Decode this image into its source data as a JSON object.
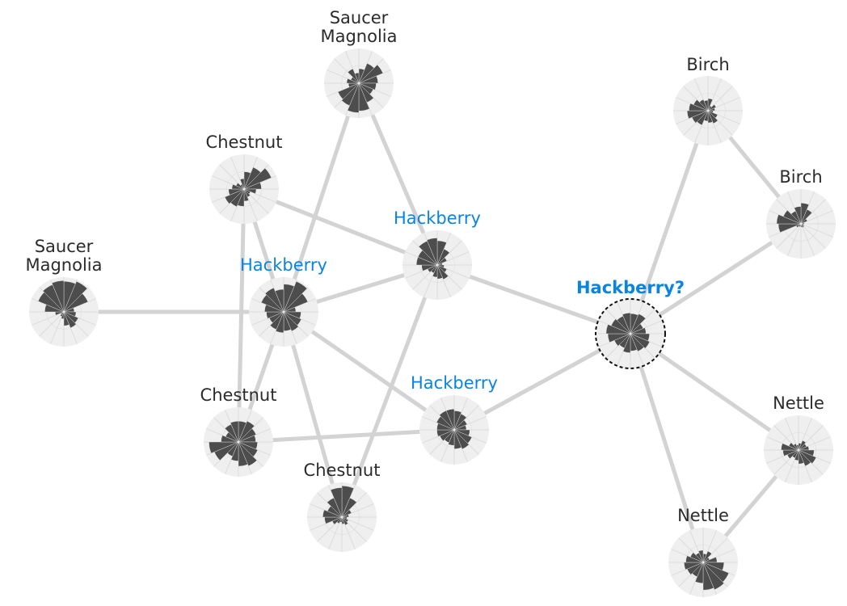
{
  "graph": {
    "colors": {
      "edge": "#d3d3d3",
      "node_background": "#efefef",
      "petal": "#4d4d4d",
      "label_default": "#2b2b2b",
      "label_highlight": "#0a84e0",
      "query_ring": "#111111"
    },
    "nodes": [
      {
        "id": "saucer-magnolia-top",
        "label": [
          "Saucer",
          "Magnolia"
        ],
        "style": "default",
        "petals": [
          0.42,
          0.62,
          0.75,
          0.55,
          0.5,
          0.45,
          0.6,
          0.8,
          0.85,
          0.7,
          0.65,
          0.3,
          0.35,
          0.25,
          0.45,
          0.3
        ]
      },
      {
        "id": "chestnut-upper",
        "label": [
          "Chestnut"
        ],
        "style": "default",
        "petals": [
          0.5,
          0.68,
          0.85,
          0.5,
          0.35,
          0.2,
          0.25,
          0.35,
          0.5,
          0.55,
          0.6,
          0.45,
          0.35,
          0.25,
          0.15,
          0.3
        ]
      },
      {
        "id": "saucer-magnolia-left",
        "label": [
          "Saucer",
          "Magnolia"
        ],
        "style": "default",
        "petals": [
          0.88,
          0.95,
          0.75,
          0.3,
          0.35,
          0.45,
          0.5,
          0.4,
          0.2,
          0.15,
          0.1,
          0.25,
          0.55,
          0.8,
          0.85,
          0.9
        ]
      },
      {
        "id": "hackberry-left",
        "label": [
          "Hackberry"
        ],
        "style": "known",
        "petals": [
          0.8,
          0.95,
          0.75,
          0.35,
          0.5,
          0.55,
          0.6,
          0.55,
          0.6,
          0.55,
          0.45,
          0.5,
          0.55,
          0.7,
          0.75,
          0.65
        ]
      },
      {
        "id": "hackberry-center",
        "label": [
          "Hackberry"
        ],
        "style": "known",
        "petals": [
          0.7,
          0.5,
          0.3,
          0.15,
          0.2,
          0.3,
          0.45,
          0.4,
          0.35,
          0.25,
          0.3,
          0.45,
          0.6,
          0.6,
          0.75,
          0.78
        ]
      },
      {
        "id": "hackberry-lower",
        "label": [
          "Hackberry"
        ],
        "style": "known",
        "petals": [
          0.55,
          0.5,
          0.4,
          0.35,
          0.45,
          0.55,
          0.6,
          0.55,
          0.45,
          0.4,
          0.45,
          0.5,
          0.5,
          0.55,
          0.6,
          0.6
        ]
      },
      {
        "id": "chestnut-lower-left",
        "label": [
          "Chestnut"
        ],
        "style": "default",
        "petals": [
          0.6,
          0.65,
          0.55,
          0.5,
          0.55,
          0.6,
          0.75,
          0.7,
          0.55,
          0.45,
          0.75,
          0.85,
          0.5,
          0.4,
          0.55,
          0.6
        ]
      },
      {
        "id": "chestnut-bottom",
        "label": [
          "Chestnut"
        ],
        "style": "default",
        "petals": [
          0.9,
          0.6,
          0.3,
          0.2,
          0.15,
          0.2,
          0.25,
          0.2,
          0.15,
          0.2,
          0.3,
          0.5,
          0.55,
          0.45,
          0.6,
          0.85
        ]
      },
      {
        "id": "query-node",
        "label": [
          "Hackberry?"
        ],
        "style": "query",
        "petals": [
          0.58,
          0.62,
          0.4,
          0.45,
          0.55,
          0.6,
          0.55,
          0.5,
          0.55,
          0.45,
          0.5,
          0.65,
          0.7,
          0.6,
          0.55,
          0.6
        ]
      },
      {
        "id": "birch-top",
        "label": [
          "Birch"
        ],
        "style": "default",
        "petals": [
          0.35,
          0.15,
          0.25,
          0.2,
          0.15,
          0.3,
          0.4,
          0.35,
          0.3,
          0.45,
          0.5,
          0.6,
          0.55,
          0.45,
          0.35,
          0.3
        ]
      },
      {
        "id": "birch-right",
        "label": [
          "Birch"
        ],
        "style": "default",
        "petals": [
          0.6,
          0.45,
          0.2,
          0.1,
          0.08,
          0.1,
          0.12,
          0.1,
          0.08,
          0.1,
          0.15,
          0.65,
          0.7,
          0.55,
          0.4,
          0.5
        ]
      },
      {
        "id": "nettle-right",
        "label": [
          "Nettle"
        ],
        "style": "default",
        "petals": [
          0.2,
          0.3,
          0.25,
          0.3,
          0.45,
          0.55,
          0.5,
          0.4,
          0.3,
          0.25,
          0.35,
          0.45,
          0.5,
          0.3,
          0.2,
          0.15
        ]
      },
      {
        "id": "nettle-bottom",
        "label": [
          "Nettle"
        ],
        "style": "default",
        "petals": [
          0.25,
          0.35,
          0.2,
          0.4,
          0.6,
          0.8,
          0.85,
          0.8,
          0.6,
          0.45,
          0.5,
          0.55,
          0.5,
          0.4,
          0.3,
          0.35
        ]
      }
    ],
    "edges": [
      [
        "saucer-magnolia-top",
        "hackberry-left"
      ],
      [
        "saucer-magnolia-top",
        "hackberry-center"
      ],
      [
        "chestnut-upper",
        "hackberry-center"
      ],
      [
        "chestnut-upper",
        "hackberry-left"
      ],
      [
        "chestnut-upper",
        "chestnut-lower-left"
      ],
      [
        "saucer-magnolia-left",
        "hackberry-left"
      ],
      [
        "hackberry-left",
        "hackberry-center"
      ],
      [
        "hackberry-left",
        "chestnut-lower-left"
      ],
      [
        "hackberry-left",
        "hackberry-lower"
      ],
      [
        "hackberry-left",
        "chestnut-bottom"
      ],
      [
        "hackberry-center",
        "chestnut-bottom"
      ],
      [
        "hackberry-center",
        "query-node"
      ],
      [
        "chestnut-lower-left",
        "hackberry-lower"
      ],
      [
        "hackberry-lower",
        "query-node"
      ],
      [
        "query-node",
        "birch-top"
      ],
      [
        "query-node",
        "birch-right"
      ],
      [
        "query-node",
        "nettle-right"
      ],
      [
        "query-node",
        "nettle-bottom"
      ],
      [
        "birch-top",
        "birch-right"
      ],
      [
        "nettle-right",
        "nettle-bottom"
      ]
    ]
  }
}
